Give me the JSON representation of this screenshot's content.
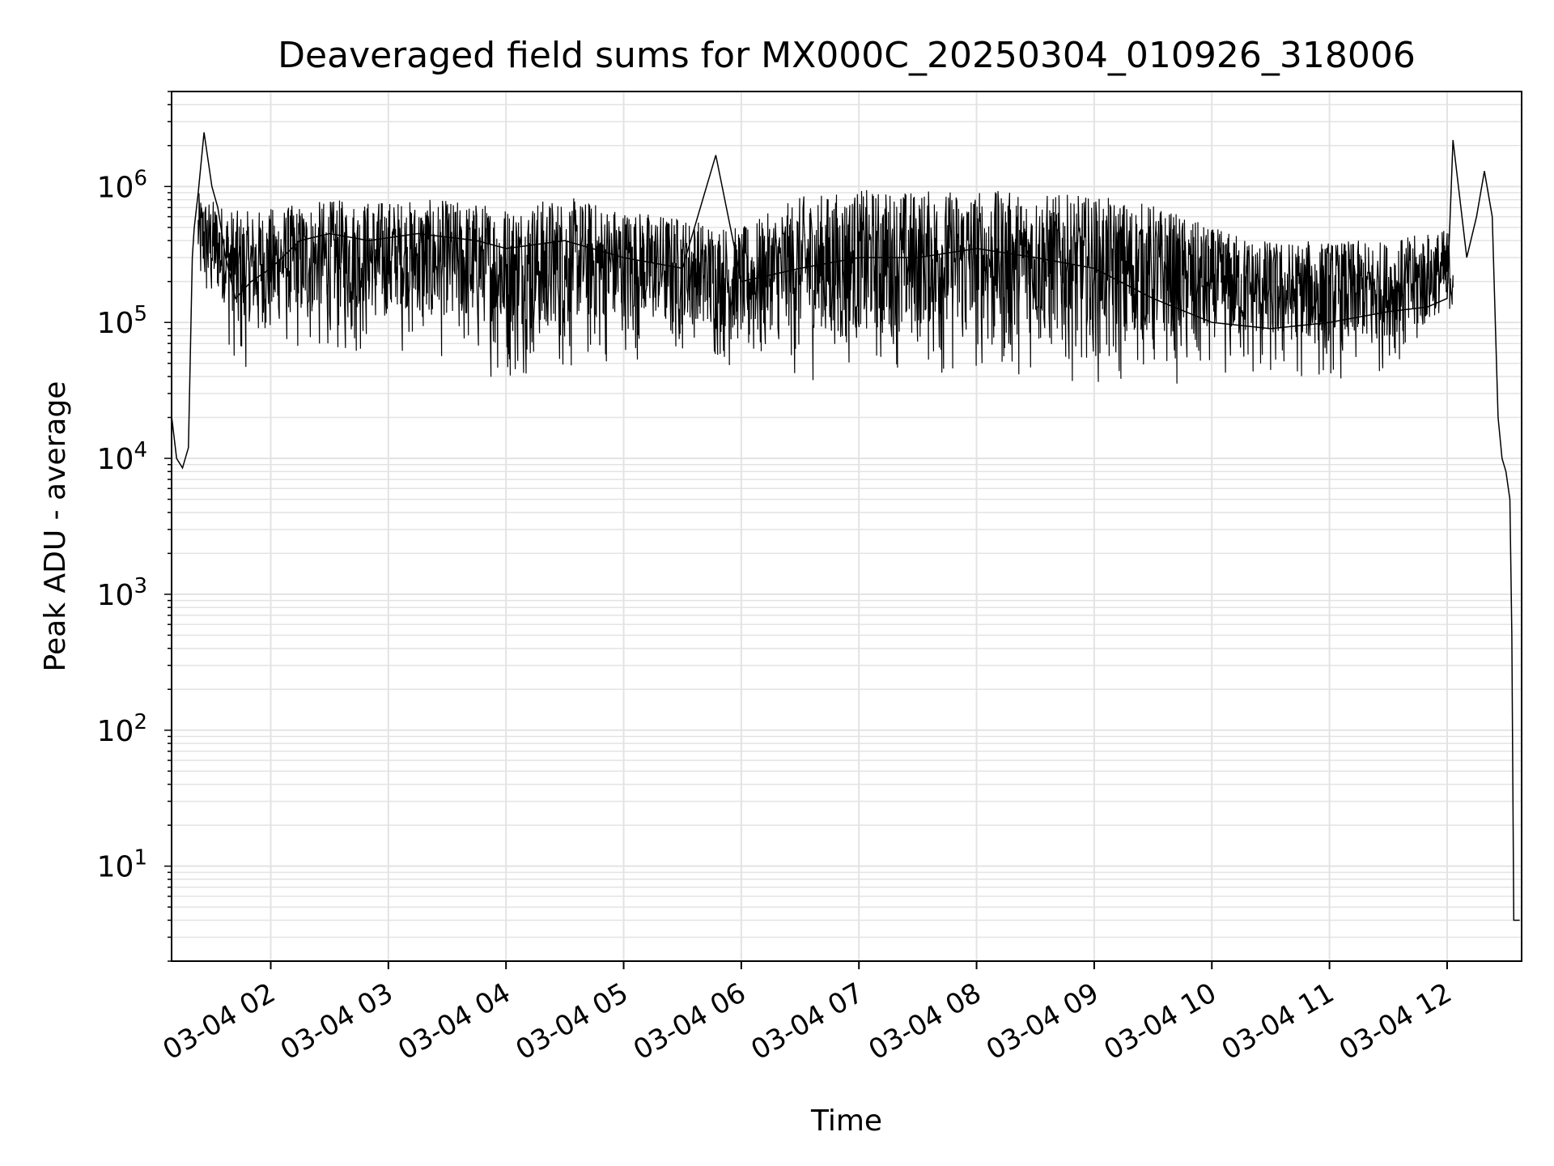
{
  "chart_data": {
    "type": "line",
    "title": "Deaveraged field sums for MX000C_20250304_010926_318006",
    "xlabel": "Time",
    "ylabel": "Peak ADU - average",
    "x_scale": "time",
    "y_scale": "log",
    "xlim": [
      "2025-03-04T01:09:26",
      "2025-03-04T12:38:00"
    ],
    "ylim": [
      2,
      5000000
    ],
    "x_ticks": [
      "03-04 02",
      "03-04 03",
      "03-04 04",
      "03-04 05",
      "03-04 06",
      "03-04 07",
      "03-04 08",
      "03-04 09",
      "03-04 10",
      "03-04 11",
      "03-04 12"
    ],
    "y_ticks": [
      {
        "value": 10,
        "base": "10",
        "exp": "1"
      },
      {
        "value": 100,
        "base": "10",
        "exp": "2"
      },
      {
        "value": 1000,
        "base": "10",
        "exp": "3"
      },
      {
        "value": 10000,
        "base": "10",
        "exp": "4"
      },
      {
        "value": 100000,
        "base": "10",
        "exp": "5"
      },
      {
        "value": 1000000,
        "base": "10",
        "exp": "6"
      }
    ],
    "grid": true,
    "line_color": "#000000",
    "grid_color": "#e3e3e3",
    "series": [
      {
        "x": [
          "2025-03-04T01:09:30",
          "2025-03-04T01:12:00",
          "2025-03-04T01:15:00",
          "2025-03-04T01:18:00",
          "2025-03-04T01:20:00",
          "2025-03-04T01:21:00",
          "2025-03-04T01:23:00",
          "2025-03-04T01:26:00",
          "2025-03-04T01:30:00",
          "2025-03-04T01:33:00",
          "2025-03-04T01:37:00",
          "2025-03-04T01:42:00",
          "2025-03-04T01:50:00",
          "2025-03-04T02:00:00",
          "2025-03-04T02:15:00",
          "2025-03-04T02:30:00",
          "2025-03-04T02:50:00",
          "2025-03-04T03:15:00",
          "2025-03-04T03:45:00",
          "2025-03-04T04:00:00",
          "2025-03-04T04:30:00",
          "2025-03-04T05:00:00",
          "2025-03-04T05:30:00",
          "2025-03-04T05:47:00",
          "2025-03-04T06:00:00",
          "2025-03-04T06:30:00",
          "2025-03-04T07:00:00",
          "2025-03-04T07:30:00",
          "2025-03-04T08:00:00",
          "2025-03-04T08:30:00",
          "2025-03-04T09:00:00",
          "2025-03-04T09:30:00",
          "2025-03-04T10:00:00",
          "2025-03-04T10:30:00",
          "2025-03-04T11:00:00",
          "2025-03-04T11:30:00",
          "2025-03-04T11:50:00",
          "2025-03-04T12:00:00",
          "2025-03-04T12:03:00",
          "2025-03-04T12:10:00",
          "2025-03-04T12:15:00",
          "2025-03-04T12:19:00",
          "2025-03-04T12:23:00",
          "2025-03-04T12:26:00",
          "2025-03-04T12:28:00",
          "2025-03-04T12:30:00",
          "2025-03-04T12:32:00",
          "2025-03-04T12:33:00",
          "2025-03-04T12:34:00",
          "2025-03-04T12:37:00"
        ],
        "y": [
          20000,
          10000,
          8500,
          12000,
          300000,
          500000,
          900000,
          2500000,
          1000000,
          700000,
          300000,
          150000,
          200000,
          250000,
          400000,
          450000,
          400000,
          450000,
          400000,
          350000,
          400000,
          300000,
          250000,
          1700000,
          200000,
          250000,
          300000,
          300000,
          350000,
          300000,
          250000,
          150000,
          100000,
          90000,
          100000,
          120000,
          130000,
          150000,
          2200000,
          300000,
          600000,
          1300000,
          600000,
          20000,
          10000,
          8000,
          5000,
          500,
          4,
          4
        ]
      }
    ],
    "envelope": {
      "x": [
        "2025-03-04T01:23:00",
        "2025-03-04T01:45:00",
        "2025-03-04T02:00:00",
        "2025-03-04T02:30:00",
        "2025-03-04T03:00:00",
        "2025-03-04T03:30:00",
        "2025-03-04T04:00:00",
        "2025-03-04T04:30:00",
        "2025-03-04T05:00:00",
        "2025-03-04T05:30:00",
        "2025-03-04T06:00:00",
        "2025-03-04T06:30:00",
        "2025-03-04T07:00:00",
        "2025-03-04T07:30:00",
        "2025-03-04T08:00:00",
        "2025-03-04T08:30:00",
        "2025-03-04T09:00:00",
        "2025-03-04T09:30:00",
        "2025-03-04T10:00:00",
        "2025-03-04T10:30:00",
        "2025-03-04T11:00:00",
        "2025-03-04T11:30:00",
        "2025-03-04T12:03:00"
      ],
      "upper": [
        900000,
        650000,
        700000,
        800000,
        800000,
        800000,
        750000,
        850000,
        700000,
        600000,
        500000,
        850000,
        950000,
        950000,
        950000,
        900000,
        850000,
        750000,
        500000,
        400000,
        400000,
        400000,
        500000
      ],
      "lower": [
        150000,
        40000,
        60000,
        50000,
        60000,
        50000,
        35000,
        40000,
        50000,
        55000,
        40000,
        35000,
        35000,
        35000,
        40000,
        40000,
        35000,
        30000,
        35000,
        35000,
        35000,
        40000,
        70000
      ]
    }
  }
}
